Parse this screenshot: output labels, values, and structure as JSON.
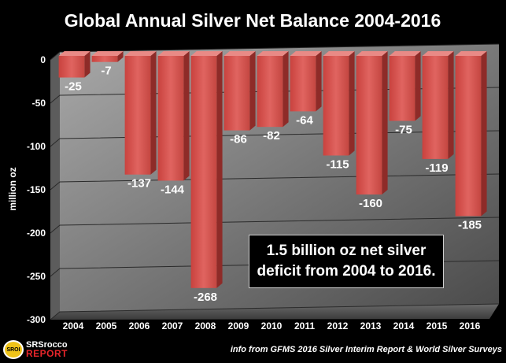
{
  "chart_data": {
    "type": "bar",
    "title": "Global Annual Silver Net Balance 2004-2016",
    "ylabel": "million oz",
    "xlabel": "",
    "categories": [
      "2004",
      "2005",
      "2006",
      "2007",
      "2008",
      "2009",
      "2010",
      "2011",
      "2012",
      "2013",
      "2014",
      "2015",
      "2016"
    ],
    "values": [
      -25,
      -7,
      -137,
      -144,
      -268,
      -86,
      -82,
      -64,
      -115,
      -160,
      -75,
      -119,
      -185
    ],
    "data_labels": [
      "-25",
      "-7",
      "-137",
      "-144",
      "-268",
      "-86",
      "-82",
      "-64",
      "-115",
      "-160",
      "-75",
      "-119",
      "-185"
    ],
    "ylim": [
      -300,
      0
    ],
    "yticks": [
      0,
      -50,
      -100,
      -150,
      -200,
      -250,
      -300
    ],
    "grid": true,
    "bar_color": "#d9534f",
    "background": "#000000",
    "annotation": "1.5 billion oz net silver deficit from 2004 to 2016."
  },
  "source_note": "info from GFMS 2016 Silver Interim Report & World Silver Surveys",
  "logo": {
    "seal": "SROI",
    "top": "SRSrocco",
    "bottom": "REPORT"
  }
}
